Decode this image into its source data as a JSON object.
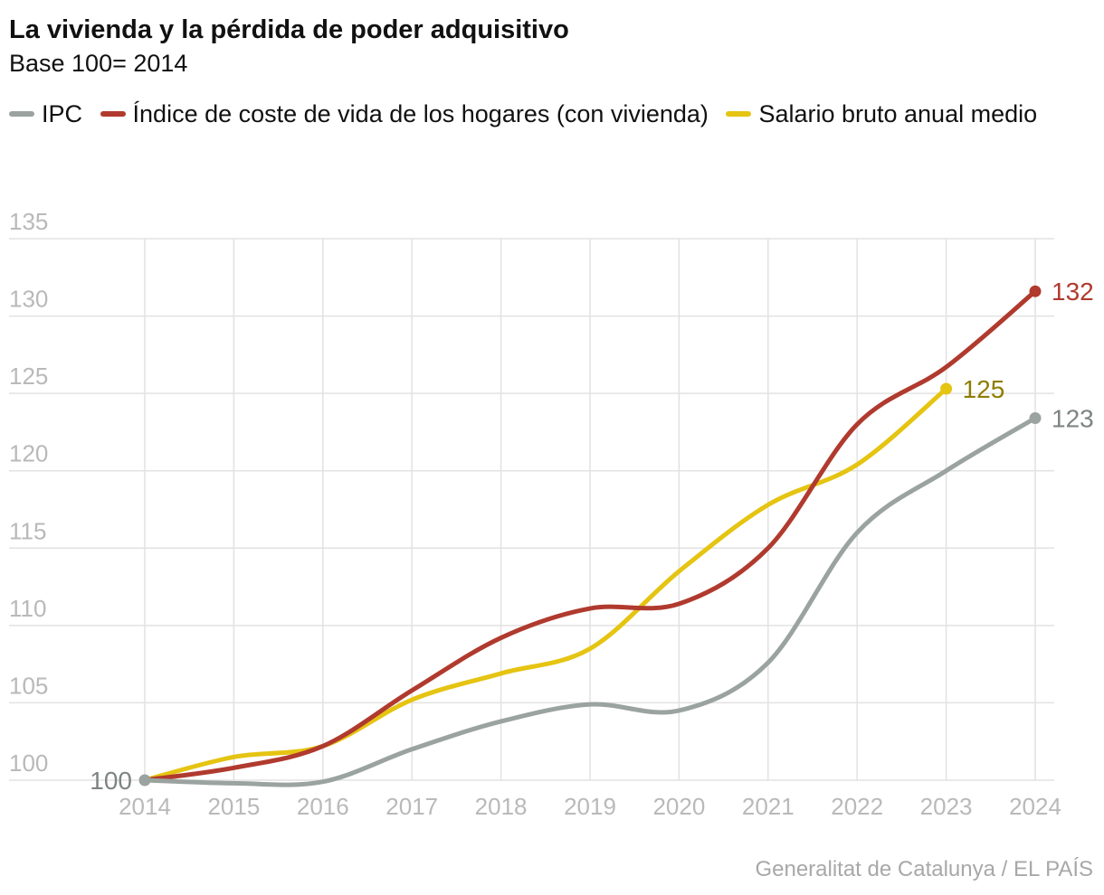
{
  "chart_data": {
    "type": "line",
    "title": "La vivienda y la pérdida de poder adquisitivo",
    "subtitle": "Base 100= 2014",
    "source": "Generalitat de Catalunya / EL PAÍS",
    "x": [
      2014,
      2015,
      2016,
      2017,
      2018,
      2019,
      2020,
      2021,
      2022,
      2023,
      2024
    ],
    "xlim": [
      2014,
      2024
    ],
    "xticks": [
      2014,
      2015,
      2016,
      2017,
      2018,
      2019,
      2020,
      2021,
      2022,
      2023,
      2024
    ],
    "ylim": [
      100,
      135
    ],
    "yticks": [
      100,
      105,
      110,
      115,
      120,
      125,
      130,
      135
    ],
    "grid": true,
    "series": [
      {
        "name": "IPC",
        "color": "#9aa39f",
        "label_color": "#7d8582",
        "values": [
          100,
          99.8,
          99.9,
          102,
          103.8,
          104.9,
          104.5,
          107.6,
          116,
          120,
          123.4
        ],
        "value_labels": [
          "100",
          null,
          null,
          null,
          null,
          null,
          null,
          null,
          null,
          null,
          "123"
        ]
      },
      {
        "name": "Índice de coste de vida de los hogares (con vivienda)",
        "color": "#b03a2e",
        "label_color": "#b03a2e",
        "values": [
          100,
          100.8,
          102.2,
          105.8,
          109.2,
          111.1,
          111.4,
          115,
          123,
          126.7,
          131.6
        ],
        "value_labels": [
          null,
          null,
          null,
          null,
          null,
          null,
          null,
          null,
          null,
          null,
          "132"
        ]
      },
      {
        "name": "Salario bruto anual medio",
        "color": "#e5c412",
        "label_color": "#8f7d00",
        "values": [
          100,
          101.5,
          102.2,
          105.2,
          106.9,
          108.5,
          113.5,
          117.8,
          120.4,
          125.3,
          null
        ],
        "value_labels": [
          null,
          null,
          null,
          null,
          null,
          null,
          null,
          null,
          null,
          "125",
          null
        ]
      }
    ]
  }
}
